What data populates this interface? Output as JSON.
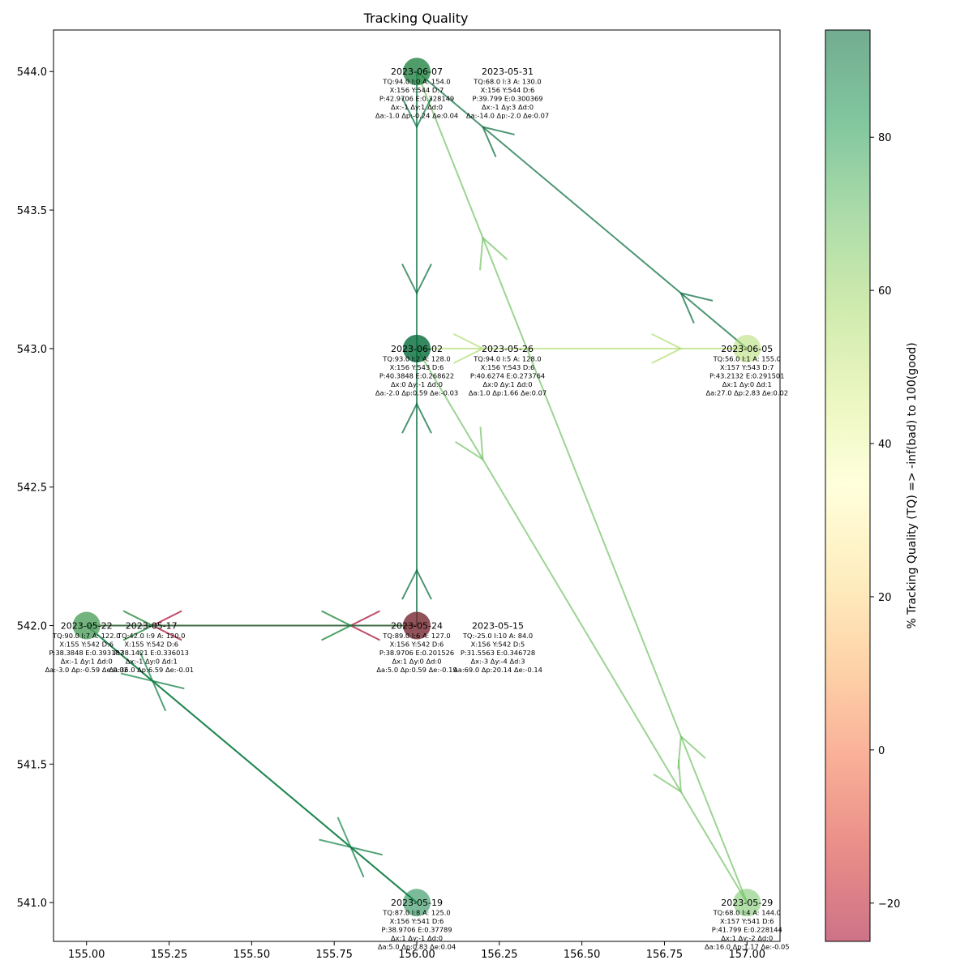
{
  "chart_data": {
    "type": "scatter",
    "title": "Tracking Quality",
    "xlabel": "",
    "ylabel": "",
    "xlim": [
      154.9,
      157.1
    ],
    "ylim": [
      540.86,
      544.15
    ],
    "x_ticks": [
      {
        "value": 155.0,
        "label": "155.00"
      },
      {
        "value": 155.25,
        "label": "155.25"
      },
      {
        "value": 155.5,
        "label": "155.50"
      },
      {
        "value": 155.75,
        "label": "155.75"
      },
      {
        "value": 156.0,
        "label": "156.00"
      },
      {
        "value": 156.25,
        "label": "156.25"
      },
      {
        "value": 156.5,
        "label": "156.50"
      },
      {
        "value": 156.75,
        "label": "156.75"
      },
      {
        "value": 157.0,
        "label": "157.00"
      }
    ],
    "y_ticks": [
      {
        "value": 541.0,
        "label": "541.0"
      },
      {
        "value": 541.5,
        "label": "541.5"
      },
      {
        "value": 542.0,
        "label": "542.0"
      },
      {
        "value": 542.5,
        "label": "542.5"
      },
      {
        "value": 543.0,
        "label": "543.0"
      },
      {
        "value": 543.5,
        "label": "543.5"
      },
      {
        "value": 544.0,
        "label": "544.0"
      }
    ],
    "colorbar": {
      "label": "% Tracking Quality (TQ) => -inf(bad) to 100(good)",
      "min": -25,
      "max": 94,
      "ticks": [
        {
          "value": -20,
          "label": "−20"
        },
        {
          "value": 0,
          "label": "0"
        },
        {
          "value": 20,
          "label": "20"
        },
        {
          "value": 40,
          "label": "40"
        },
        {
          "value": 60,
          "label": "60"
        },
        {
          "value": 80,
          "label": "80"
        }
      ],
      "colormap": [
        "#a50026",
        "#d73027",
        "#f46d43",
        "#fdae61",
        "#fee08b",
        "#ffffbf",
        "#d9ef8b",
        "#a6d96a",
        "#66bd63",
        "#1a9850",
        "#006837"
      ]
    },
    "points": [
      {
        "id": "p0517",
        "date": "2023-05-17",
        "x": 155.0,
        "y": 542.0,
        "tq": 42.0,
        "lines": [
          "TQ:42.0 I:9 A: 120.0",
          "X:155 Y:542 D:6",
          "P:38.1421 E:0.336013",
          "Δx:-1 Δy:0 Δd:1",
          "Δa:36.0 Δp:6.59 Δe:-0.01"
        ]
      },
      {
        "id": "p0519",
        "date": "2023-05-19",
        "x": 156.0,
        "y": 541.0,
        "tq": 87.0,
        "lines": [
          "TQ:87.0 I:8 A: 125.0",
          "X:156 Y:541 D:6",
          "P:38.9706 E:0.37789",
          "Δx:1 Δy:-1 Δd:0",
          "Δa:5.0 Δp:0.83 Δe:0.04"
        ]
      },
      {
        "id": "p0522",
        "date": "2023-05-22",
        "x": 155.0,
        "y": 542.0,
        "tq": 90.0,
        "lines": [
          "TQ:90.0 I:7 A: 122.0",
          "X:155 Y:542 D:6",
          "P:38.3848 E:0.393187",
          "Δx:-1 Δy:1 Δd:0",
          "Δa:-3.0 Δp:-0.59 Δe:0.02"
        ]
      },
      {
        "id": "p0524",
        "date": "2023-05-24",
        "x": 156.0,
        "y": 542.0,
        "tq": 89.0,
        "lines": [
          "TQ:89.0 I:6 A: 127.0",
          "X:156 Y:542 D:6",
          "P:38.9706 E:0.201526",
          "Δx:1 Δy:0 Δd:0",
          "Δa:5.0 Δp:0.59 Δe:-0.19"
        ]
      },
      {
        "id": "p0526",
        "date": "2023-05-26",
        "x": 156.0,
        "y": 543.0,
        "tq": 94.0,
        "lines": [
          "TQ:94.0 I:5 A: 128.0",
          "X:156 Y:543 D:6",
          "P:40.6274 E:0.273764",
          "Δx:0 Δy:1 Δd:0",
          "Δa:1.0 Δp:1.66 Δe:0.07"
        ]
      },
      {
        "id": "p0529",
        "date": "2023-05-29",
        "x": 157.0,
        "y": 541.0,
        "tq": 68.0,
        "lines": [
          "TQ:68.0 I:4 A: 144.0",
          "X:157 Y:541 D:6",
          "P:41.799 E:0.228144",
          "Δx:1 Δy:-2 Δd:0",
          "Δa:16.0 Δp:1.17 Δe:-0.05"
        ]
      },
      {
        "id": "p0531",
        "date": "2023-05-31",
        "x": 156.0,
        "y": 544.0,
        "tq": 68.0,
        "lines": [
          "TQ:68.0 I:3 A: 130.0",
          "X:156 Y:544 D:6",
          "P:39.799 E:0.300369",
          "Δx:-1 Δy:3 Δd:0",
          "Δa:-14.0 Δp:-2.0 Δe:0.07"
        ]
      },
      {
        "id": "p0602",
        "date": "2023-06-02",
        "x": 156.0,
        "y": 543.0,
        "tq": 93.0,
        "lines": [
          "TQ:93.0 I:2 A: 128.0",
          "X:156 Y:543 D:6",
          "P:40.3848 E:0.268622",
          "Δx:0 Δy:-1 Δd:0",
          "Δa:-2.0 Δp:0.59 Δe:-0.03"
        ]
      },
      {
        "id": "p0605",
        "date": "2023-06-05",
        "x": 157.0,
        "y": 543.0,
        "tq": 56.0,
        "lines": [
          "TQ:56.0 I:1 A: 155.0",
          "X:157 Y:543 D:7",
          "P:43.2132 E:0.291501",
          "Δx:1 Δy:0 Δd:1",
          "Δa:27.0 Δp:2.83 Δe:0.02"
        ]
      },
      {
        "id": "p0607",
        "date": "2023-06-07",
        "x": 156.0,
        "y": 544.0,
        "tq": 94.0,
        "lines": [
          "TQ:94.0 I:0 A: 154.0",
          "X:156 Y:544 D:7",
          "P:42.9706 E:0.328149",
          "Δx:-1 Δy:1 Δd:0",
          "Δa:-1.0 Δp:-0.24 Δe:0.04"
        ]
      },
      {
        "id": "p0515",
        "date": "2023-05-15",
        "x": 156.0,
        "y": 542.0,
        "tq": -25.0,
        "lines": [
          "TQ:-25.0 I:10 A: 84.0",
          "X:156 Y:542 D:5",
          "P:31.5563 E:0.346728",
          "Δx:-3 Δy:-4 Δd:3",
          "Δa:69.0 Δp:20.14 Δe:-0.14"
        ]
      }
    ],
    "arrows": [
      {
        "from": [
          155.0,
          542.0
        ],
        "to": [
          156.0,
          542.0
        ],
        "tq": 42.0
      },
      {
        "from": [
          156.0,
          542.0
        ],
        "to": [
          155.0,
          542.0
        ],
        "tq": -25.0
      },
      {
        "from": [
          155.0,
          542.0
        ],
        "to": [
          156.0,
          541.0
        ],
        "tq": 87.0
      },
      {
        "from": [
          156.0,
          541.0
        ],
        "to": [
          155.0,
          542.0
        ],
        "tq": 90.0
      },
      {
        "from": [
          155.0,
          542.0
        ],
        "to": [
          156.0,
          542.0
        ],
        "tq": 89.0
      },
      {
        "from": [
          156.0,
          542.0
        ],
        "to": [
          156.0,
          543.0
        ],
        "tq": 94.0
      },
      {
        "from": [
          156.0,
          543.0
        ],
        "to": [
          157.0,
          541.0
        ],
        "tq": 68.0
      },
      {
        "from": [
          157.0,
          541.0
        ],
        "to": [
          156.0,
          544.0
        ],
        "tq": 68.0
      },
      {
        "from": [
          156.0,
          544.0
        ],
        "to": [
          156.0,
          543.0
        ],
        "tq": 93.0
      },
      {
        "from": [
          156.0,
          543.0
        ],
        "to": [
          157.0,
          543.0
        ],
        "tq": 56.0
      },
      {
        "from": [
          157.0,
          543.0
        ],
        "to": [
          156.0,
          544.0
        ],
        "tq": 94.0
      }
    ]
  }
}
